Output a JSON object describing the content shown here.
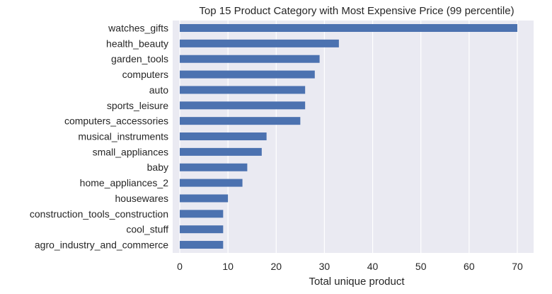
{
  "chart_data": {
    "type": "bar",
    "orientation": "horizontal",
    "title": "Top 15 Product Category with Most Expensive Price (99 percentile)",
    "xlabel": "Total unique product",
    "ylabel": "",
    "categories": [
      "watches_gifts",
      "health_beauty",
      "garden_tools",
      "computers",
      "auto",
      "sports_leisure",
      "computers_accessories",
      "musical_instruments",
      "small_appliances",
      "baby",
      "home_appliances_2",
      "housewares",
      "construction_tools_construction",
      "cool_stuff",
      "agro_industry_and_commerce"
    ],
    "values": [
      70,
      33,
      29,
      28,
      26,
      26,
      25,
      18,
      17,
      14,
      13,
      10,
      9,
      9,
      9
    ],
    "xlim": [
      0,
      73.5
    ],
    "xticks": [
      0,
      10,
      20,
      30,
      40,
      50,
      60,
      70
    ],
    "grid": true,
    "colors": {
      "bar": "#4c72b0",
      "plot_background": "#eaeaf2",
      "grid": "#ffffff"
    }
  }
}
